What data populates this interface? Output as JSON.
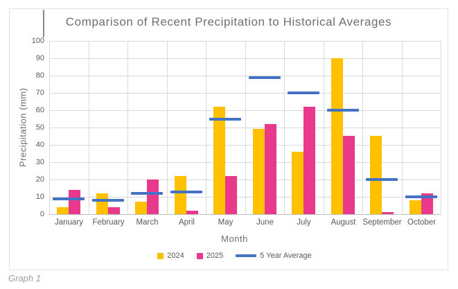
{
  "caption": "Graph 1",
  "colors": {
    "bar_2024": "#FFC000",
    "bar_2025": "#E8398C",
    "avg_line": "#4472C4",
    "gridline": "#D9D9D9",
    "axis_line": "#BFBFBF",
    "tick_text": "#595959",
    "title_text": "#6E6E6E",
    "caption_text": "#9E9E9E"
  },
  "chart_data": {
    "type": "bar",
    "title": "Comparison of Recent Precipitation to Historical Averages",
    "xlabel": "Month",
    "ylabel": "Precipitation (mm)",
    "ylim": [
      0,
      100
    ],
    "ytick_step": 10,
    "grid": true,
    "legend_position": "bottom",
    "categories": [
      "January",
      "February",
      "March",
      "April",
      "May",
      "June",
      "July",
      "August",
      "September",
      "October"
    ],
    "series": [
      {
        "name": "2024",
        "type": "bar",
        "color": "#FFC000",
        "values": [
          4,
          12,
          7,
          22,
          62,
          49,
          36,
          90,
          45,
          8
        ]
      },
      {
        "name": "2025",
        "type": "bar",
        "color": "#E8398C",
        "values": [
          14,
          4,
          20,
          2,
          22,
          52,
          62,
          45,
          1,
          12
        ]
      },
      {
        "name": "5 Year Average",
        "type": "line",
        "color": "#4472C4",
        "values": [
          9,
          8,
          12,
          13,
          55,
          79,
          70,
          60,
          20,
          10
        ]
      }
    ]
  }
}
